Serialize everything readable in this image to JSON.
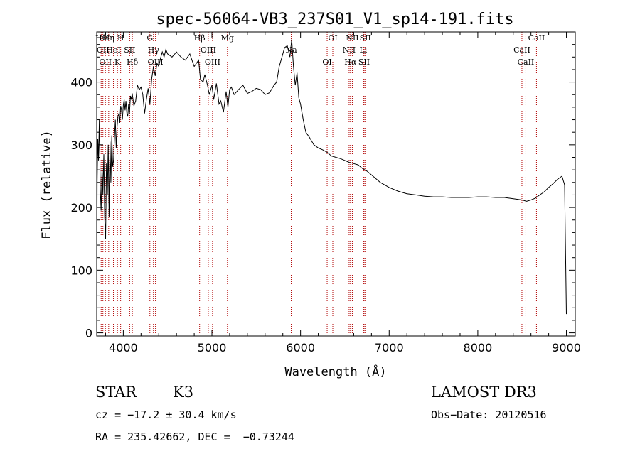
{
  "chart_data": {
    "type": "line",
    "title": "spec-56064-VB3_237S01_V1_sp14-191.fits",
    "xlabel": "Wavelength (Å)",
    "ylabel": "Flux (relative)",
    "xlim": [
      3700,
      9100
    ],
    "ylim": [
      -5,
      480
    ],
    "xticks": [
      4000,
      5000,
      6000,
      7000,
      8000,
      9000
    ],
    "yticks": [
      0,
      100,
      200,
      300,
      400
    ],
    "series": [
      {
        "name": "spectrum",
        "x": [
          3700,
          3705,
          3712,
          3720,
          3730,
          3740,
          3750,
          3760,
          3770,
          3780,
          3790,
          3800,
          3810,
          3820,
          3830,
          3840,
          3850,
          3860,
          3870,
          3880,
          3890,
          3900,
          3910,
          3920,
          3930,
          3940,
          3950,
          3960,
          3970,
          3980,
          3990,
          4000,
          4010,
          4020,
          4030,
          4040,
          4050,
          4060,
          4070,
          4080,
          4090,
          4100,
          4120,
          4140,
          4160,
          4180,
          4200,
          4220,
          4240,
          4260,
          4280,
          4300,
          4320,
          4340,
          4360,
          4380,
          4400,
          4420,
          4440,
          4460,
          4480,
          4500,
          4550,
          4600,
          4650,
          4700,
          4750,
          4800,
          4850,
          4870,
          4900,
          4920,
          4950,
          4970,
          5000,
          5020,
          5050,
          5080,
          5100,
          5130,
          5160,
          5180,
          5200,
          5220,
          5250,
          5300,
          5350,
          5400,
          5450,
          5500,
          5550,
          5600,
          5650,
          5700,
          5730,
          5760,
          5790,
          5820,
          5850,
          5880,
          5900,
          5920,
          5940,
          5960,
          5980,
          6000,
          6030,
          6060,
          6100,
          6150,
          6200,
          6250,
          6300,
          6350,
          6400,
          6450,
          6500,
          6550,
          6600,
          6650,
          6700,
          6750,
          6800,
          6850,
          6900,
          6950,
          7000,
          7100,
          7200,
          7300,
          7400,
          7500,
          7600,
          7700,
          7800,
          7900,
          8000,
          8100,
          8200,
          8300,
          8400,
          8500,
          8550,
          8600,
          8650,
          8700,
          8750,
          8800,
          8850,
          8900,
          8950,
          8980,
          9000
        ],
        "y": [
          5,
          240,
          310,
          275,
          340,
          230,
          195,
          265,
          220,
          285,
          185,
          150,
          270,
          220,
          300,
          185,
          305,
          240,
          315,
          265,
          275,
          310,
          340,
          295,
          330,
          345,
          350,
          335,
          362,
          355,
          340,
          363,
          372,
          355,
          370,
          350,
          345,
          365,
          350,
          378,
          372,
          382,
          362,
          370,
          395,
          388,
          392,
          380,
          350,
          372,
          390,
          365,
          405,
          425,
          410,
          430,
          425,
          438,
          448,
          440,
          452,
          445,
          440,
          448,
          440,
          435,
          445,
          425,
          435,
          405,
          400,
          412,
          395,
          380,
          395,
          372,
          398,
          365,
          370,
          352,
          385,
          360,
          388,
          392,
          380,
          388,
          395,
          382,
          385,
          390,
          388,
          380,
          383,
          395,
          400,
          425,
          440,
          455,
          458,
          440,
          468,
          425,
          395,
          415,
          375,
          365,
          340,
          320,
          312,
          300,
          295,
          292,
          288,
          282,
          280,
          278,
          275,
          272,
          270,
          268,
          262,
          258,
          252,
          246,
          240,
          236,
          232,
          226,
          222,
          220,
          218,
          217,
          217,
          216,
          216,
          216,
          217,
          217,
          216,
          216,
          214,
          212,
          210,
          212,
          215,
          220,
          225,
          232,
          238,
          245,
          250,
          236,
          30
        ]
      }
    ],
    "lines": [
      {
        "x": 3750,
        "label": "Hθ"
      },
      {
        "x": 3770,
        "label": "OII"
      },
      {
        "x": 3798,
        "label": "OII"
      },
      {
        "x": 3835,
        "label": "Hη"
      },
      {
        "x": 3889,
        "label": "HeI"
      },
      {
        "x": 3934,
        "label": "K"
      },
      {
        "x": 3970,
        "label": "H"
      },
      {
        "x": 4072,
        "label": "SII"
      },
      {
        "x": 4102,
        "label": "Hδ"
      },
      {
        "x": 4300,
        "label": "G"
      },
      {
        "x": 4340,
        "label": "Hγ"
      },
      {
        "x": 4363,
        "label": "OIII"
      },
      {
        "x": 4861,
        "label": "Hβ"
      },
      {
        "x": 4959,
        "label": "OIII"
      },
      {
        "x": 5007,
        "label": "OIII"
      },
      {
        "x": 5175,
        "label": "Mg"
      },
      {
        "x": 5895,
        "label": "Na"
      },
      {
        "x": 6300,
        "label": "OI"
      },
      {
        "x": 6364,
        "label": "OI"
      },
      {
        "x": 6548,
        "label": "NII"
      },
      {
        "x": 6563,
        "label": "Hα"
      },
      {
        "x": 6584,
        "label": "NII"
      },
      {
        "x": 6708,
        "label": "Li"
      },
      {
        "x": 6717,
        "label": "SII"
      },
      {
        "x": 6731,
        "label": "SII"
      },
      {
        "x": 8498,
        "label": "CaII"
      },
      {
        "x": 8542,
        "label": "CaII"
      },
      {
        "x": 8662,
        "label": "CaII"
      }
    ],
    "legend": "none"
  },
  "info": {
    "class_label": "STAR",
    "subclass": "K3",
    "survey": "LAMOST DR3",
    "cz": "cz = −17.2 ± 30.4 km/s",
    "obs_date": "Obs−Date: 20120516",
    "coords": "RA = 235.42662, DEC =  −0.73244"
  },
  "colors": {
    "spectrum": "#000000",
    "line_marker": "#b00000",
    "axis": "#000000"
  }
}
